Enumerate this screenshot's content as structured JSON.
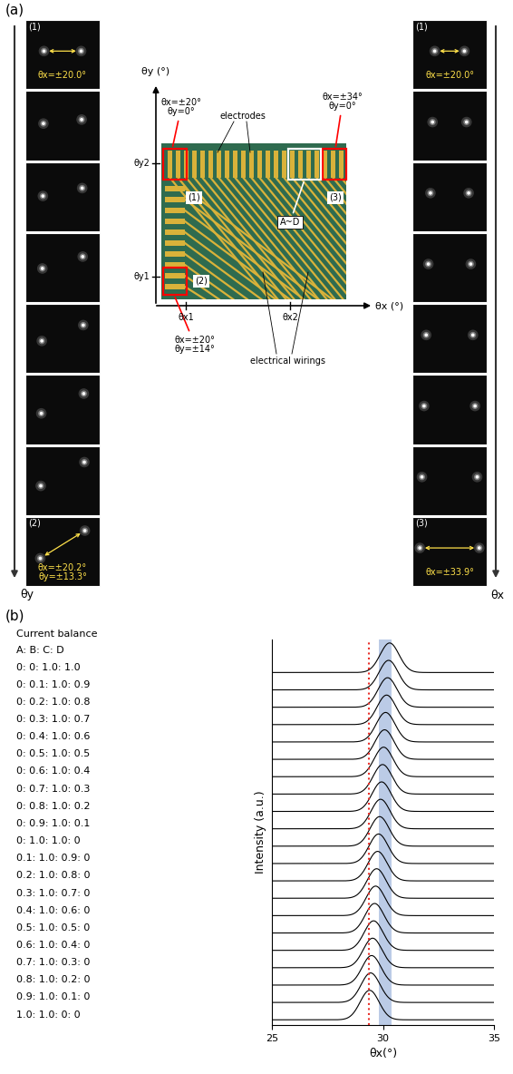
{
  "panel_a": {
    "label": "(a)",
    "left_strip": {
      "frames": 8,
      "direction": "θy",
      "first": {
        "tag": "(1)",
        "text": "θx=±20.0°"
      },
      "last": {
        "tag": "(2)",
        "text": "θx=±20.2°\nθy=±13.3°"
      }
    },
    "right_strip": {
      "frames": 8,
      "direction": "θx",
      "first": {
        "tag": "(1)",
        "text": "θx=±20.0°"
      },
      "last": {
        "tag": "(3)",
        "text": "θx=±33.9°"
      }
    },
    "chip": {
      "x_axis": "θx (°)",
      "y_axis": "θy (°)",
      "x_ticks": [
        "θx1",
        "θx2"
      ],
      "y_ticks": [
        "θy1",
        "θy2"
      ],
      "region_1": {
        "tag": "(1)",
        "text": "θx=±20°\nθy=0°"
      },
      "region_2": {
        "tag": "(2)",
        "text": "θx=±20°\nθy=±14°"
      },
      "region_3": {
        "tag": "(3)",
        "text": "θx=±34°\nθy=0°"
      },
      "electrodes": "electrodes",
      "wirings": "electrical wirings",
      "group": "A~D"
    }
  },
  "chart_data": {
    "type": "line",
    "label": "(b)",
    "x_label": "θx(°)",
    "y_label": "Intensity (a.u.)",
    "xlim": [
      25,
      35
    ],
    "xticks": [
      25,
      30,
      35
    ],
    "tick_labels": "x",
    "list_title": "Current balance",
    "list_header": "A: B: C: D",
    "color": "#000000",
    "fwhm": 1.0,
    "reference_line": {
      "value": 29.35,
      "color": "#e8302a",
      "line_style": "dotted"
    },
    "band": {
      "range": [
        29.8,
        30.4
      ],
      "color": "#9fb6dc"
    },
    "series": [
      {
        "name": "0: 0: 1.0: 1.0",
        "peak": 30.3
      },
      {
        "name": "0: 0.1: 1.0: 0.9",
        "peak": 30.255
      },
      {
        "name": "0: 0.2: 1.0: 0.8",
        "peak": 30.21
      },
      {
        "name": "0: 0.3: 1.0: 0.7",
        "peak": 30.165
      },
      {
        "name": "0: 0.4: 1.0: 0.6",
        "peak": 30.12
      },
      {
        "name": "0: 0.5: 1.0: 0.5",
        "peak": 30.075
      },
      {
        "name": "0: 0.6: 1.0: 0.4",
        "peak": 30.03
      },
      {
        "name": "0: 0.7: 1.0: 0.3",
        "peak": 29.985
      },
      {
        "name": "0: 0.8: 1.0: 0.2",
        "peak": 29.94
      },
      {
        "name": "0: 0.9: 1.0: 0.1",
        "peak": 29.895
      },
      {
        "name": "0: 1.0: 1.0: 0",
        "peak": 29.85
      },
      {
        "name": "0.1: 1.0: 0.9: 0",
        "peak": 29.805
      },
      {
        "name": "0.2: 1.0: 0.8: 0",
        "peak": 29.76
      },
      {
        "name": "0.3: 1.0: 0.7: 0",
        "peak": 29.715
      },
      {
        "name": "0.4: 1.0: 0.6: 0",
        "peak": 29.67
      },
      {
        "name": "0.5: 1.0: 0.5: 0",
        "peak": 29.625
      },
      {
        "name": "0.6: 1.0: 0.4: 0",
        "peak": 29.58
      },
      {
        "name": "0.7: 1.0: 0.3: 0",
        "peak": 29.535
      },
      {
        "name": "0.8: 1.0: 0.2: 0",
        "peak": 29.49
      },
      {
        "name": "0.9: 1.0: 0.1: 0",
        "peak": 29.445
      },
      {
        "name": "1.0: 1.0: 0: 0",
        "peak": 29.4
      }
    ]
  }
}
